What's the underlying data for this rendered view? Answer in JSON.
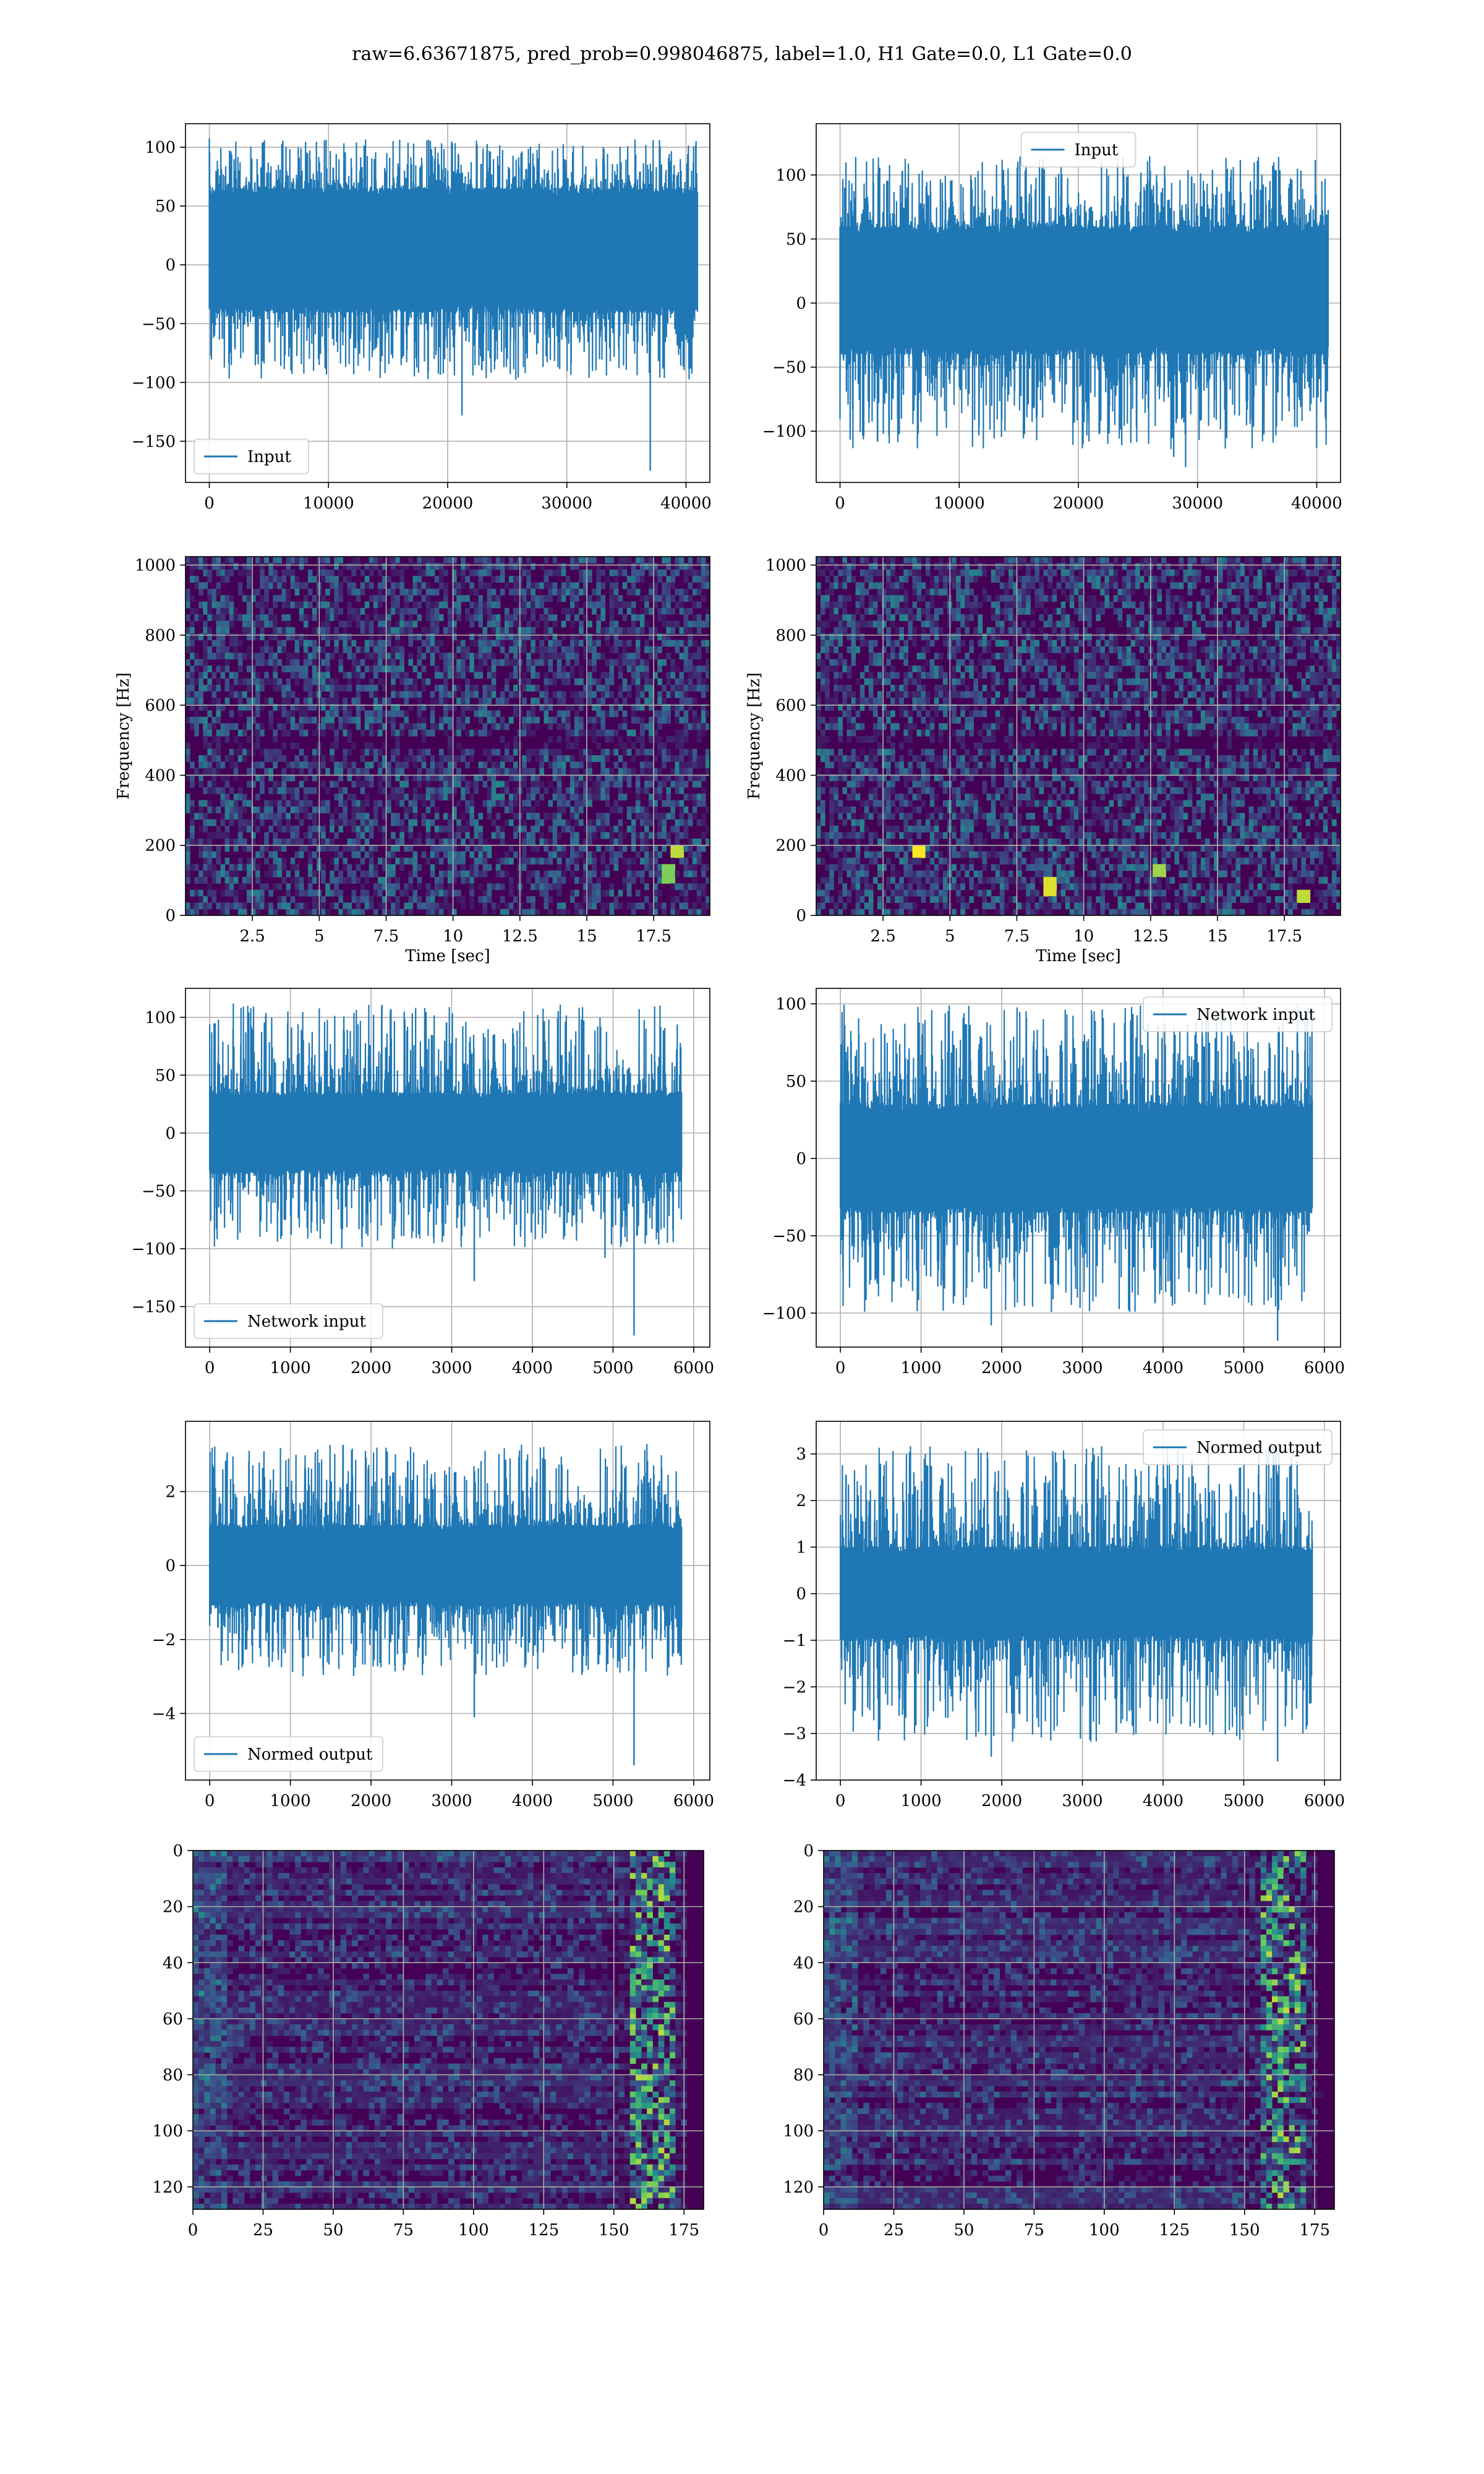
{
  "title": "raw=6.63671875, pred_prob=0.998046875, label=1.0, H1 Gate=0.0, L1 Gate=0.0",
  "colors": {
    "line": "#1f77b4",
    "grid": "#b0b0b0",
    "viridis_dark": "#440154"
  },
  "chart_data": [
    {
      "id": "h1-input",
      "type": "line",
      "legend": "Input",
      "legend_loc": "lower-left",
      "xlim": [
        -2000,
        42000
      ],
      "ylim": [
        -185,
        120
      ],
      "xticks": [
        0,
        10000,
        20000,
        30000,
        40000
      ],
      "yticks": [
        -150,
        -100,
        -50,
        0,
        50,
        100
      ],
      "x_range": [
        0,
        40960
      ],
      "signal": {
        "band": [
          -40,
          65
        ],
        "peak_hi": 108,
        "peak_lo": -98,
        "outliers": [
          {
            "x": 37000,
            "y": -175
          },
          {
            "x": 21200,
            "y": -128
          }
        ]
      },
      "grid": true,
      "xlabel": "",
      "ylabel": ""
    },
    {
      "id": "l1-input",
      "type": "line",
      "legend": "Input",
      "legend_loc": "upper-center",
      "xlim": [
        -2000,
        42000
      ],
      "ylim": [
        -140,
        140
      ],
      "xticks": [
        0,
        10000,
        20000,
        30000,
        40000
      ],
      "yticks": [
        -100,
        -50,
        0,
        50,
        100
      ],
      "x_range": [
        0,
        40960
      ],
      "signal": {
        "band": [
          -40,
          60
        ],
        "peak_hi": 115,
        "peak_lo": -115,
        "outliers": [
          {
            "x": 29000,
            "y": -128
          },
          {
            "x": 28000,
            "y": -120
          }
        ]
      },
      "grid": true,
      "xlabel": "",
      "ylabel": ""
    },
    {
      "id": "h1-spectrogram",
      "type": "heatmap",
      "xlabel": "Time [sec]",
      "ylabel": "Frequency [Hz]",
      "xlim": [
        0,
        19.6
      ],
      "ylim": [
        0,
        1024
      ],
      "xticks": [
        2.5,
        5.0,
        7.5,
        10.0,
        12.5,
        15.0,
        17.5
      ],
      "yticks": [
        0,
        200,
        400,
        600,
        800,
        1000
      ],
      "y_inverted": false,
      "grid": true,
      "colormap": "viridis",
      "hot_spots": [
        {
          "x": 18.3,
          "y": 180,
          "v": 0.9
        },
        {
          "x": 18.1,
          "y": 120,
          "v": 0.8
        }
      ]
    },
    {
      "id": "l1-spectrogram",
      "type": "heatmap",
      "xlabel": "Time [sec]",
      "ylabel": "Frequency [Hz]",
      "xlim": [
        0,
        19.6
      ],
      "ylim": [
        0,
        1024
      ],
      "xticks": [
        2.5,
        5.0,
        7.5,
        10.0,
        12.5,
        15.0,
        17.5
      ],
      "yticks": [
        0,
        200,
        400,
        600,
        800,
        1000
      ],
      "y_inverted": false,
      "grid": true,
      "colormap": "viridis",
      "hot_spots": [
        {
          "x": 3.8,
          "y": 185,
          "v": 1.0
        },
        {
          "x": 8.8,
          "y": 80,
          "v": 0.95
        },
        {
          "x": 12.8,
          "y": 130,
          "v": 0.85
        },
        {
          "x": 18.2,
          "y": 60,
          "v": 0.9
        }
      ]
    },
    {
      "id": "h1-network-input",
      "type": "line",
      "legend": "Network input",
      "legend_loc": "lower-left",
      "xlim": [
        -300,
        6200
      ],
      "ylim": [
        -185,
        125
      ],
      "xticks": [
        0,
        1000,
        2000,
        3000,
        4000,
        5000,
        6000
      ],
      "yticks": [
        -150,
        -100,
        -50,
        0,
        50,
        100
      ],
      "x_range": [
        0,
        5850
      ],
      "signal": {
        "band": [
          -35,
          35
        ],
        "peak_hi": 112,
        "peak_lo": -100,
        "outliers": [
          {
            "x": 5260,
            "y": -175
          },
          {
            "x": 3280,
            "y": -128
          },
          {
            "x": 4900,
            "y": -108
          }
        ]
      },
      "grid": true,
      "xlabel": "",
      "ylabel": ""
    },
    {
      "id": "l1-network-input",
      "type": "line",
      "legend": "Network input",
      "legend_loc": "upper-right",
      "xlim": [
        -300,
        6200
      ],
      "ylim": [
        -122,
        110
      ],
      "xticks": [
        0,
        1000,
        2000,
        3000,
        4000,
        5000,
        6000
      ],
      "yticks": [
        -100,
        -50,
        0,
        50,
        100
      ],
      "x_range": [
        0,
        5850
      ],
      "signal": {
        "band": [
          -35,
          35
        ],
        "peak_hi": 100,
        "peak_lo": -100,
        "outliers": [
          {
            "x": 5420,
            "y": -118
          },
          {
            "x": 1870,
            "y": -108
          }
        ]
      },
      "grid": true,
      "xlabel": "",
      "ylabel": ""
    },
    {
      "id": "h1-normed-output",
      "type": "line",
      "legend": "Normed output",
      "legend_loc": "lower-left",
      "xlim": [
        -300,
        6200
      ],
      "ylim": [
        -5.8,
        3.9
      ],
      "xticks": [
        0,
        1000,
        2000,
        3000,
        4000,
        5000,
        6000
      ],
      "yticks": [
        -4,
        -2,
        0,
        2
      ],
      "x_range": [
        0,
        5850
      ],
      "signal": {
        "band": [
          -1.1,
          1.1
        ],
        "peak_hi": 3.3,
        "peak_lo": -3.0,
        "outliers": [
          {
            "x": 5260,
            "y": -5.4
          },
          {
            "x": 3280,
            "y": -4.1
          }
        ]
      },
      "grid": true,
      "xlabel": "",
      "ylabel": ""
    },
    {
      "id": "l1-normed-output",
      "type": "line",
      "legend": "Normed output",
      "legend_loc": "upper-right",
      "xlim": [
        -300,
        6200
      ],
      "ylim": [
        -4.0,
        3.7
      ],
      "xticks": [
        0,
        1000,
        2000,
        3000,
        4000,
        5000,
        6000
      ],
      "yticks": [
        -4,
        -3,
        -2,
        -1,
        0,
        1,
        2,
        3
      ],
      "x_range": [
        0,
        5850
      ],
      "signal": {
        "band": [
          -1.0,
          1.0
        ],
        "peak_hi": 3.2,
        "peak_lo": -3.2,
        "outliers": [
          {
            "x": 5420,
            "y": -3.6
          },
          {
            "x": 1870,
            "y": -3.5
          }
        ]
      },
      "grid": true,
      "xlabel": "",
      "ylabel": ""
    },
    {
      "id": "h1-feature-map",
      "type": "heatmap",
      "xlabel": "",
      "ylabel": "",
      "xlim": [
        0,
        182
      ],
      "ylim": [
        128,
        0
      ],
      "xticks": [
        0,
        25,
        50,
        75,
        100,
        125,
        150,
        175
      ],
      "yticks": [
        0,
        20,
        40,
        60,
        80,
        100,
        120
      ],
      "y_inverted": true,
      "grid": true,
      "colormap": "viridis",
      "hot_band": {
        "x": [
          155,
          172
        ],
        "v": 0.9
      }
    },
    {
      "id": "l1-feature-map",
      "type": "heatmap",
      "xlabel": "",
      "ylabel": "",
      "xlim": [
        0,
        182
      ],
      "ylim": [
        128,
        0
      ],
      "xticks": [
        0,
        25,
        50,
        75,
        100,
        125,
        150,
        175
      ],
      "yticks": [
        0,
        20,
        40,
        60,
        80,
        100,
        120
      ],
      "y_inverted": true,
      "grid": true,
      "colormap": "viridis",
      "hot_band": {
        "x": [
          155,
          172
        ],
        "v": 0.9
      }
    }
  ]
}
